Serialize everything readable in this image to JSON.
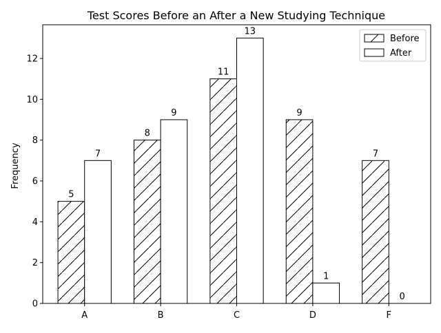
{
  "chart_data": {
    "type": "bar",
    "title": "Test Scores Before an After a New Studying Technique",
    "xlabel": "",
    "ylabel": "Frequency",
    "categories": [
      "A",
      "B",
      "C",
      "D",
      "F"
    ],
    "series": [
      {
        "name": "Before",
        "values": [
          5,
          8,
          11,
          9,
          7
        ],
        "fill": "#ffffff",
        "hatch": "diagonal"
      },
      {
        "name": "After",
        "values": [
          7,
          9,
          13,
          1,
          0
        ],
        "fill": "#ffffff",
        "hatch": "none"
      }
    ],
    "ylim": [
      0,
      13.65
    ],
    "yticks": [
      0,
      2,
      4,
      6,
      8,
      10,
      12
    ],
    "grid": false,
    "legend_position": "top-right",
    "colors": {
      "edge": "#000000",
      "background": "#ffffff"
    }
  }
}
